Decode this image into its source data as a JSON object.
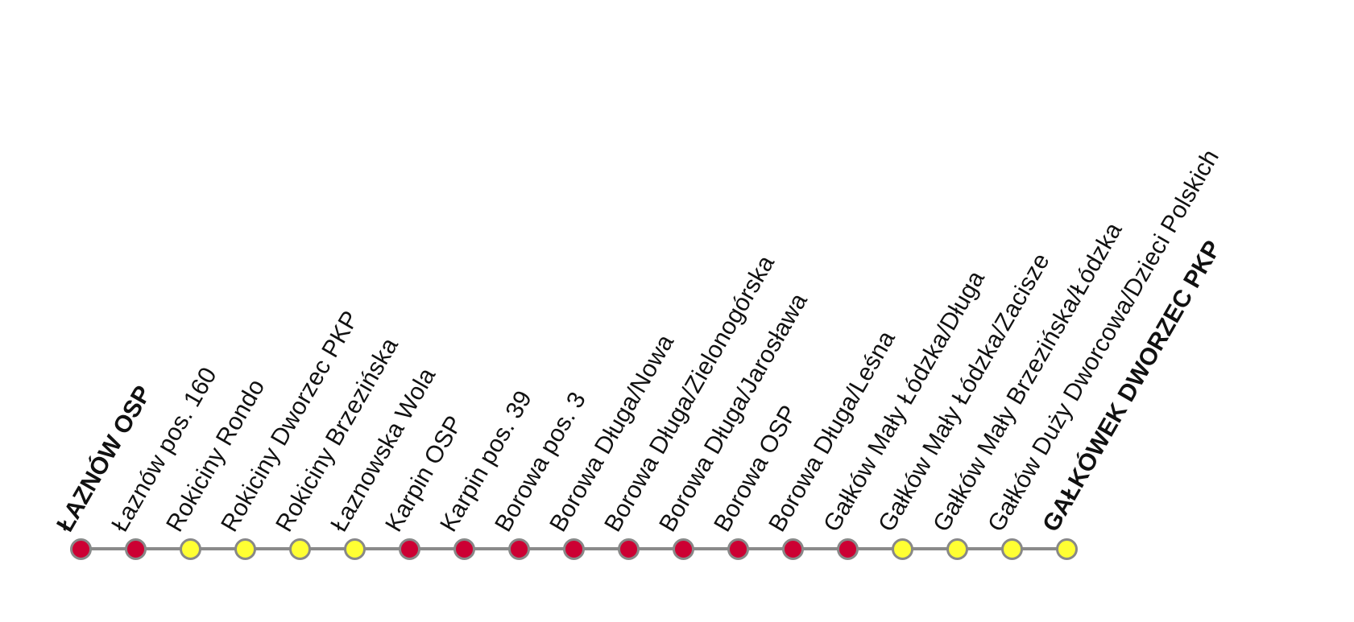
{
  "diagram": {
    "type": "bus-route-stop-line",
    "colors": {
      "line": "#8a8a8a",
      "dot_border": "#888888",
      "stop_red": "#cc0033",
      "stop_yellow": "#ffff33",
      "label": "#111111"
    },
    "stops": [
      {
        "label": "ŁAZNÓW OSP",
        "color": "red",
        "terminal": true
      },
      {
        "label": "Łaznów pos. 160",
        "color": "red",
        "terminal": false
      },
      {
        "label": "Rokiciny Rondo",
        "color": "yellow",
        "terminal": false
      },
      {
        "label": "Rokiciny Dworzec PKP",
        "color": "yellow",
        "terminal": false
      },
      {
        "label": "Rokiciny Brzezińska",
        "color": "yellow",
        "terminal": false
      },
      {
        "label": "Łaznowska Wola",
        "color": "yellow",
        "terminal": false
      },
      {
        "label": "Karpin OSP",
        "color": "red",
        "terminal": false
      },
      {
        "label": "Karpin pos. 39",
        "color": "red",
        "terminal": false
      },
      {
        "label": "Borowa pos. 3",
        "color": "red",
        "terminal": false
      },
      {
        "label": "Borowa Długa/Nowa",
        "color": "red",
        "terminal": false
      },
      {
        "label": "Borowa Długa/Zielonogórska",
        "color": "red",
        "terminal": false
      },
      {
        "label": "Borowa Długa/Jarosława",
        "color": "red",
        "terminal": false
      },
      {
        "label": "Borowa OSP",
        "color": "red",
        "terminal": false
      },
      {
        "label": "Borowa Długa/Leśna",
        "color": "red",
        "terminal": false
      },
      {
        "label": "Gałków Mały Łódzka/Długa",
        "color": "red",
        "terminal": false
      },
      {
        "label": "Gałków Mały Łódzka/Zacisze",
        "color": "yellow",
        "terminal": false
      },
      {
        "label": "Gałków Mały Brzezińska/Łódzka",
        "color": "yellow",
        "terminal": false
      },
      {
        "label": "Gałków Duży Dworcowa/Dzieci Polskich",
        "color": "yellow",
        "terminal": false
      },
      {
        "label": "GAŁKÓWEK DWORZEC PKP",
        "color": "yellow",
        "terminal": true
      }
    ]
  }
}
